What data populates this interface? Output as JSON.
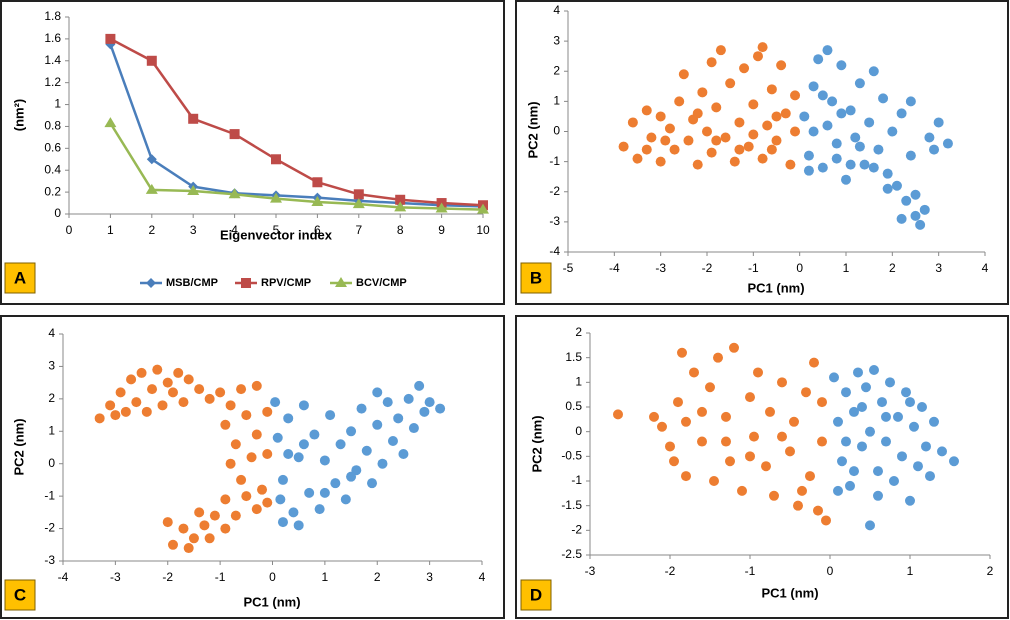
{
  "chart_data": [
    {
      "type": "line",
      "label": "A",
      "x_label": "Eigenvector index",
      "y_label": "(nm²)",
      "x": [
        1,
        2,
        3,
        4,
        5,
        6,
        7,
        8,
        9,
        10
      ],
      "xlim": [
        0,
        10
      ],
      "xticks": [
        0,
        1,
        2,
        3,
        4,
        5,
        6,
        7,
        8,
        9,
        10
      ],
      "ylim": [
        0,
        1.8
      ],
      "yticks": [
        0,
        0.2,
        0.4,
        0.6,
        0.8,
        1,
        1.2,
        1.4,
        1.6,
        1.8
      ],
      "legend": "bottom",
      "series": [
        {
          "name": "MSB/CMP",
          "color": "#4a7ebb",
          "values": [
            1.55,
            0.5,
            0.25,
            0.19,
            0.17,
            0.15,
            0.12,
            0.1,
            0.08,
            0.07
          ]
        },
        {
          "name": "RPV/CMP",
          "color": "#be4b48",
          "values": [
            1.6,
            1.4,
            0.87,
            0.73,
            0.5,
            0.29,
            0.18,
            0.13,
            0.1,
            0.08
          ]
        },
        {
          "name": "BCV/CMP",
          "color": "#98b954",
          "values": [
            0.83,
            0.22,
            0.21,
            0.18,
            0.14,
            0.11,
            0.09,
            0.06,
            0.05,
            0.04
          ]
        }
      ]
    },
    {
      "type": "scatter",
      "label": "B",
      "x_label": "PC1 (nm)",
      "y_label": "PC2 (nm)",
      "xlim": [
        -5,
        4
      ],
      "xticks": [
        -5,
        -4,
        -3,
        -2,
        -1,
        0,
        1,
        2,
        3,
        4
      ],
      "ylim": [
        -4,
        4
      ],
      "yticks": [
        -4,
        -3,
        -2,
        -1,
        0,
        1,
        2,
        3,
        4
      ],
      "series": [
        {
          "color": "#ed7d31",
          "x": [
            -3.8,
            -3.6,
            -3.5,
            -3.3,
            -3.2,
            -3.0,
            -3.0,
            -2.8,
            -2.7,
            -2.6,
            -2.5,
            -2.4,
            -2.3,
            -2.2,
            -2.1,
            -2.0,
            -1.9,
            -1.8,
            -1.7,
            -1.6,
            -1.5,
            -1.4,
            -1.3,
            -1.2,
            -1.1,
            -1.0,
            -0.9,
            -0.8,
            -0.7,
            -0.6,
            -0.5,
            -0.4,
            -0.3,
            -0.2,
            -0.1,
            -0.1,
            -2.9,
            -1.8,
            -1.0,
            -0.5,
            -2.2,
            -1.3,
            -0.6,
            -3.3,
            -0.8,
            -1.9
          ],
          "y": [
            -0.5,
            0.3,
            -0.9,
            0.7,
            -0.2,
            0.5,
            -1.0,
            0.1,
            -0.6,
            1.0,
            1.9,
            -0.3,
            0.4,
            -1.1,
            1.3,
            0.0,
            -0.7,
            0.8,
            2.7,
            -0.2,
            1.6,
            -1.0,
            0.3,
            2.1,
            -0.5,
            0.9,
            2.5,
            -0.9,
            0.2,
            1.4,
            -0.3,
            2.2,
            0.6,
            -1.1,
            0.0,
            1.2,
            -0.3,
            -0.3,
            -0.1,
            0.5,
            0.6,
            -0.6,
            -0.6,
            -0.6,
            2.8,
            2.3
          ]
        },
        {
          "color": "#5b9bd5",
          "x": [
            0.1,
            0.2,
            0.3,
            0.4,
            0.5,
            0.6,
            0.7,
            0.8,
            0.9,
            1.0,
            1.1,
            1.2,
            1.3,
            1.4,
            1.5,
            1.6,
            1.7,
            1.8,
            1.9,
            2.0,
            2.1,
            2.2,
            2.3,
            2.4,
            2.5,
            2.6,
            2.7,
            2.8,
            2.9,
            3.0,
            3.2,
            2.2,
            2.5,
            1.9,
            0.3,
            0.5,
            0.9,
            1.3,
            1.1,
            0.2,
            0.6,
            1.6,
            2.4,
            0.8
          ],
          "y": [
            0.5,
            -0.8,
            1.5,
            2.4,
            -1.2,
            0.2,
            1.0,
            -0.4,
            2.2,
            -1.6,
            0.7,
            -0.2,
            1.6,
            -1.1,
            0.3,
            2.0,
            -0.6,
            1.1,
            -1.4,
            0.0,
            -1.8,
            0.6,
            -2.3,
            -0.8,
            -2.8,
            -3.1,
            -2.6,
            -0.2,
            -0.6,
            0.3,
            -0.4,
            -2.9,
            -2.1,
            -1.9,
            0.0,
            1.2,
            0.6,
            -0.5,
            -1.1,
            -1.3,
            2.7,
            -1.2,
            1.0,
            -0.9
          ]
        }
      ]
    },
    {
      "type": "scatter",
      "label": "C",
      "x_label": "PC1 (nm)",
      "y_label": "PC2 (nm)",
      "xlim": [
        -4,
        4
      ],
      "xticks": [
        -4,
        -3,
        -2,
        -1,
        0,
        1,
        2,
        3,
        4
      ],
      "ylim": [
        -3,
        4
      ],
      "yticks": [
        -3,
        -2,
        -1,
        0,
        1,
        2,
        3,
        4
      ],
      "series": [
        {
          "color": "#ed7d31",
          "x": [
            -3.3,
            -3.1,
            -3.0,
            -2.9,
            -2.8,
            -2.7,
            -2.6,
            -2.5,
            -2.4,
            -2.3,
            -2.2,
            -2.1,
            -2.0,
            -1.9,
            -1.8,
            -1.7,
            -1.6,
            -1.4,
            -1.2,
            -1.0,
            -0.8,
            -0.6,
            -0.3,
            -0.9,
            -0.7,
            -0.5,
            -0.3,
            -0.1,
            -0.8,
            -0.6,
            -0.4,
            -0.2,
            -0.1,
            -0.5,
            -0.3,
            -0.1,
            -0.9,
            -1.1,
            -1.3,
            -1.5,
            -1.7,
            -1.9,
            -2.0,
            -1.6,
            -1.2,
            -0.9,
            -0.7,
            -1.4
          ],
          "y": [
            1.4,
            1.8,
            1.5,
            2.2,
            1.6,
            2.6,
            1.9,
            2.8,
            1.6,
            2.3,
            2.9,
            1.8,
            2.5,
            2.2,
            2.8,
            1.9,
            2.6,
            2.3,
            2.0,
            2.2,
            1.8,
            2.3,
            2.4,
            1.2,
            0.6,
            1.5,
            0.9,
            0.3,
            0.0,
            -0.5,
            0.2,
            -0.8,
            1.6,
            -1.0,
            -1.4,
            -1.2,
            -1.1,
            -1.6,
            -1.9,
            -2.3,
            -2.0,
            -2.5,
            -1.8,
            -2.6,
            -2.3,
            -2.0,
            -1.6,
            -1.5
          ]
        },
        {
          "color": "#5b9bd5",
          "x": [
            0.05,
            0.1,
            0.2,
            0.3,
            0.4,
            0.5,
            0.6,
            0.7,
            0.8,
            0.9,
            1.0,
            1.1,
            1.2,
            1.3,
            1.4,
            1.5,
            1.6,
            1.7,
            1.8,
            1.9,
            2.0,
            2.1,
            2.2,
            2.3,
            2.4,
            2.5,
            2.6,
            2.7,
            2.8,
            2.9,
            3.0,
            3.2,
            0.3,
            0.5,
            0.2,
            1.0,
            0.6,
            1.5,
            2.0,
            0.15
          ],
          "y": [
            1.9,
            0.8,
            -0.5,
            1.4,
            -1.5,
            0.2,
            1.8,
            -0.9,
            0.9,
            -1.4,
            0.1,
            1.5,
            -0.6,
            0.6,
            -1.1,
            1.0,
            -0.2,
            1.7,
            0.4,
            -0.6,
            1.2,
            0.0,
            1.9,
            0.7,
            1.4,
            0.3,
            2.0,
            1.1,
            2.4,
            1.6,
            1.9,
            1.7,
            0.3,
            -1.9,
            -1.8,
            -0.9,
            0.6,
            -0.4,
            2.2,
            -1.1
          ]
        }
      ]
    },
    {
      "type": "scatter",
      "label": "D",
      "x_label": "PC1 (nm)",
      "y_label": "PC2 (nm)",
      "xlim": [
        -3,
        2
      ],
      "xticks": [
        -3,
        -2,
        -1,
        0,
        1,
        2
      ],
      "ylim": [
        -2.5,
        2
      ],
      "yticks": [
        -2.5,
        -2,
        -1.5,
        -1,
        -0.5,
        0,
        0.5,
        1,
        1.5,
        2
      ],
      "series": [
        {
          "color": "#ed7d31",
          "x": [
            -2.65,
            -2.1,
            -2.0,
            -1.9,
            -1.85,
            -1.8,
            -1.7,
            -1.6,
            -1.5,
            -1.45,
            -1.4,
            -1.3,
            -1.25,
            -1.2,
            -1.1,
            -1.0,
            -0.95,
            -0.9,
            -0.8,
            -0.75,
            -0.7,
            -0.6,
            -0.5,
            -0.45,
            -0.4,
            -0.3,
            -0.25,
            -0.2,
            -0.1,
            -0.05,
            -0.1,
            -1.6,
            -1.3,
            -0.6,
            -1.0,
            -1.8,
            -0.35,
            -0.15,
            -2.2,
            -1.95
          ],
          "y": [
            0.35,
            0.1,
            -0.3,
            0.6,
            1.6,
            -0.9,
            1.2,
            -0.2,
            0.9,
            -1.0,
            1.5,
            0.3,
            -0.6,
            1.7,
            -1.2,
            0.7,
            -0.1,
            1.2,
            -0.7,
            0.4,
            -1.3,
            1.0,
            -0.4,
            0.2,
            -1.5,
            0.8,
            -0.9,
            1.4,
            -0.2,
            -1.8,
            0.6,
            0.4,
            -0.2,
            -0.1,
            -0.5,
            0.2,
            -1.2,
            -1.6,
            0.3,
            -0.6
          ]
        },
        {
          "color": "#5b9bd5",
          "x": [
            0.05,
            0.1,
            0.15,
            0.2,
            0.25,
            0.3,
            0.35,
            0.4,
            0.45,
            0.5,
            0.5,
            0.55,
            0.6,
            0.65,
            0.7,
            0.75,
            0.8,
            0.85,
            0.9,
            0.95,
            1.0,
            1.05,
            1.1,
            1.15,
            1.2,
            1.3,
            1.4,
            1.55,
            0.2,
            0.4,
            0.3,
            0.7,
            1.0,
            0.1,
            0.6,
            1.25
          ],
          "y": [
            1.1,
            0.2,
            -0.6,
            0.8,
            -1.1,
            0.4,
            1.2,
            -0.3,
            0.9,
            -1.9,
            0.0,
            1.25,
            -0.8,
            0.6,
            -0.2,
            1.0,
            -1.0,
            0.3,
            -0.5,
            0.8,
            -1.4,
            0.1,
            -0.7,
            0.5,
            -0.3,
            0.2,
            -0.4,
            -0.6,
            -0.2,
            0.5,
            -0.8,
            0.3,
            0.6,
            -1.2,
            -1.3,
            -0.9
          ]
        }
      ]
    }
  ]
}
